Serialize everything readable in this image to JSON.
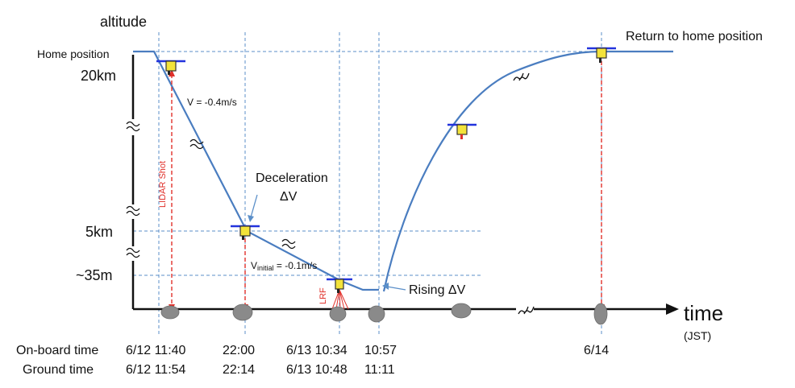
{
  "axes": {
    "y_label": "altitude",
    "x_label": "time",
    "x_unit": "(JST)",
    "altitude_marks": [
      "Home position",
      "20km",
      "5km",
      "~35m"
    ]
  },
  "annotations": {
    "velocity_descent": "V = -0.4m/s",
    "deceleration_line1": "Deceleration",
    "deceleration_line2": "ΔV",
    "initial_velocity_prefix": "V",
    "initial_velocity_sub": "initial",
    "initial_velocity_suffix": " = -0.1m/s",
    "rising": "Rising ΔV",
    "return_home": "Return to home position",
    "lidar_shot": "LIDAR Shot",
    "lrf": "LRF"
  },
  "timeline": {
    "onboard_label": "On-board time",
    "ground_label": "Ground time",
    "onboard": [
      "6/12 11:40",
      "22:00",
      "6/13 10:34",
      "10:57",
      "6/14"
    ],
    "ground": [
      "6/12 11:54",
      "22:14",
      "6/13 10:48",
      "11:11"
    ]
  },
  "colors": {
    "trajectory": "#4a7dc0",
    "guide_lines": "#5b8fc9",
    "lidar": "#e0302a",
    "probe": "#f3e33a",
    "probe_bar": "#2233dd",
    "rock": "#8a8a8a"
  }
}
